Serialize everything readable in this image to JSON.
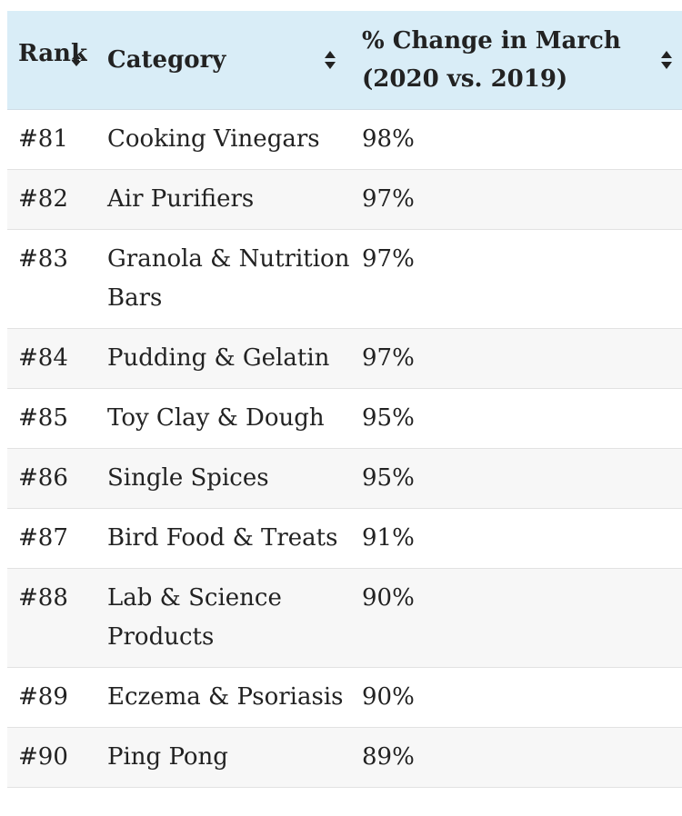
{
  "table": {
    "headers": {
      "rank": "Rank",
      "category": "Category",
      "change": "% Change in March (2020 vs. 2019)"
    },
    "rows": [
      {
        "rank": "#81",
        "category": "Cooking Vinegars",
        "change": "98%"
      },
      {
        "rank": "#82",
        "category": "Air Purifiers",
        "change": "97%"
      },
      {
        "rank": "#83",
        "category": "Granola & Nutrition Bars",
        "change": "97%"
      },
      {
        "rank": "#84",
        "category": "Pudding & Gelatin",
        "change": "97%"
      },
      {
        "rank": "#85",
        "category": "Toy Clay & Dough",
        "change": "95%"
      },
      {
        "rank": "#86",
        "category": "Single Spices",
        "change": "95%"
      },
      {
        "rank": "#87",
        "category": "Bird Food & Treats",
        "change": "91%"
      },
      {
        "rank": "#88",
        "category": "Lab & Science Products",
        "change": "90%"
      },
      {
        "rank": "#89",
        "category": "Eczema & Psoriasis",
        "change": "90%"
      },
      {
        "rank": "#90",
        "category": "Ping Pong",
        "change": "89%"
      }
    ]
  },
  "icons": {
    "sort": "sort-both-icon"
  },
  "colors": {
    "header_bg": "#d9edf7",
    "row_alt_bg": "#f7f7f7",
    "text": "#222222"
  }
}
